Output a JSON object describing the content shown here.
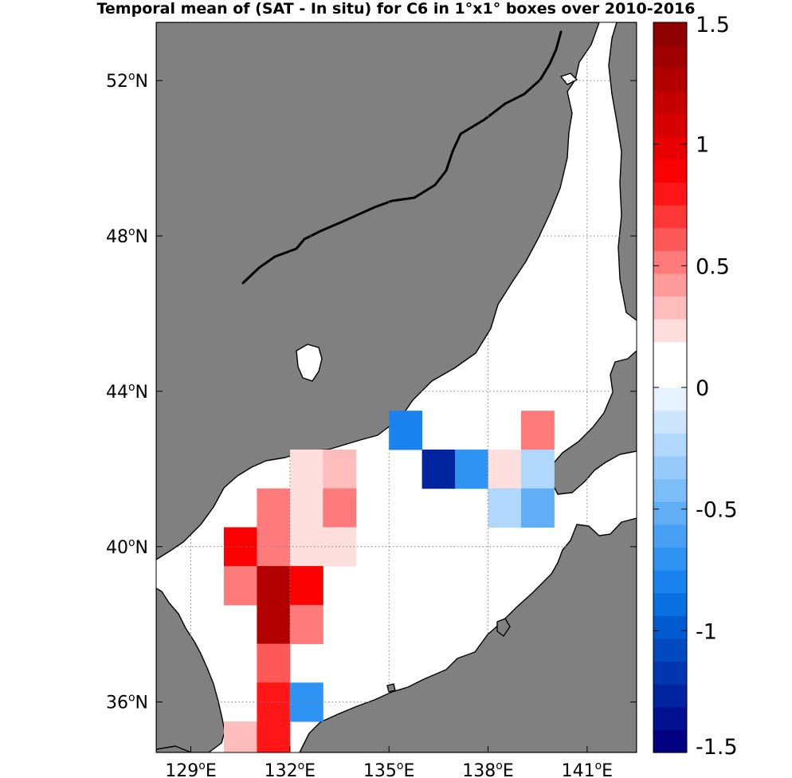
{
  "title": "Temporal mean of (SAT - In situ) for C6 in 1°x1° boxes over 2010-2016",
  "colors": {
    "land": "#808080",
    "sea": "#ffffff",
    "coastline": "#000000",
    "grid": "#808080"
  },
  "map": {
    "lon_range": [
      127.95,
      142.5
    ],
    "lat_range": [
      34.7,
      53.5
    ],
    "lon_ticks": [
      {
        "value": 129,
        "deg": "129",
        "hemi": "E"
      },
      {
        "value": 132,
        "deg": "132",
        "hemi": "E"
      },
      {
        "value": 135,
        "deg": "135",
        "hemi": "E"
      },
      {
        "value": 138,
        "deg": "138",
        "hemi": "E"
      },
      {
        "value": 141,
        "deg": "141",
        "hemi": "E"
      }
    ],
    "lat_ticks": [
      {
        "value": 36,
        "deg": "36",
        "hemi": "N"
      },
      {
        "value": 40,
        "deg": "40",
        "hemi": "N"
      },
      {
        "value": 44,
        "deg": "44",
        "hemi": "N"
      },
      {
        "value": 48,
        "deg": "48",
        "hemi": "N"
      },
      {
        "value": 52,
        "deg": "52",
        "hemi": "N"
      }
    ],
    "degree_symbol": "o"
  },
  "colorbar": {
    "min": -1.5,
    "max": 1.5,
    "ticks": [
      {
        "value": 1.5,
        "label": "1.5"
      },
      {
        "value": 1,
        "label": "1"
      },
      {
        "value": 0.5,
        "label": "0.5"
      },
      {
        "value": 0,
        "label": "0"
      },
      {
        "value": -0.5,
        "label": "-0.5"
      },
      {
        "value": -1,
        "label": "-1"
      },
      {
        "value": -1.5,
        "label": "-1.5"
      }
    ],
    "colors": [
      "#000080",
      "#00128f",
      "#00249f",
      "#0037b0",
      "#0049c0",
      "#005bd0",
      "#0a6fe0",
      "#1a82ef",
      "#2e93f2",
      "#47a0f4",
      "#61aef6",
      "#7abdf8",
      "#95cafa",
      "#b0d8fc",
      "#cce5fd",
      "#e6f2fe",
      "#ffffff",
      "#ffffff",
      "#ffdede",
      "#ffbcbc",
      "#ff9b9b",
      "#ff7a7a",
      "#ff5858",
      "#ff3737",
      "#ff1616",
      "#fa0000",
      "#e80000",
      "#d60000",
      "#c40000",
      "#b20000",
      "#a10000",
      "#8f0000"
    ]
  },
  "chart_data": {
    "type": "heatmap",
    "title": "Temporal mean of (SAT - In situ) for C6 in 1°x1° boxes over 2010-2016",
    "cell_size_deg": 1,
    "value_range": [
      -1.5,
      1.5
    ],
    "cells": [
      {
        "lon": 135.5,
        "lat": 43.0,
        "value": -0.8
      },
      {
        "lon": 139.5,
        "lat": 43.0,
        "value": 0.5
      },
      {
        "lon": 132.5,
        "lat": 42.0,
        "value": 0.25
      },
      {
        "lon": 133.5,
        "lat": 42.0,
        "value": 0.35
      },
      {
        "lon": 136.5,
        "lat": 42.0,
        "value": -1.3
      },
      {
        "lon": 137.5,
        "lat": 42.0,
        "value": -0.75
      },
      {
        "lon": 138.5,
        "lat": 42.0,
        "value": 0.25
      },
      {
        "lon": 139.5,
        "lat": 42.0,
        "value": -0.25
      },
      {
        "lon": 131.5,
        "lat": 41.0,
        "value": 0.5
      },
      {
        "lon": 132.5,
        "lat": 41.0,
        "value": 0.25
      },
      {
        "lon": 133.5,
        "lat": 41.0,
        "value": 0.55
      },
      {
        "lon": 138.5,
        "lat": 41.0,
        "value": -0.25
      },
      {
        "lon": 139.5,
        "lat": 41.0,
        "value": -0.55
      },
      {
        "lon": 130.5,
        "lat": 40.0,
        "value": 0.85
      },
      {
        "lon": 131.5,
        "lat": 40.0,
        "value": 0.5
      },
      {
        "lon": 132.5,
        "lat": 40.0,
        "value": 0.25
      },
      {
        "lon": 133.5,
        "lat": 40.0,
        "value": 0.25
      },
      {
        "lon": 130.5,
        "lat": 39.0,
        "value": 0.5
      },
      {
        "lon": 131.5,
        "lat": 39.0,
        "value": 1.3
      },
      {
        "lon": 132.5,
        "lat": 39.0,
        "value": 0.85
      },
      {
        "lon": 131.5,
        "lat": 38.0,
        "value": 1.3
      },
      {
        "lon": 132.5,
        "lat": 38.0,
        "value": 0.55
      },
      {
        "lon": 131.5,
        "lat": 37.0,
        "value": 0.6
      },
      {
        "lon": 131.5,
        "lat": 36.0,
        "value": 0.8
      },
      {
        "lon": 132.5,
        "lat": 36.0,
        "value": -0.7
      },
      {
        "lon": 130.5,
        "lat": 35.0,
        "value": 0.35
      },
      {
        "lon": 131.5,
        "lat": 35.0,
        "value": 0.8
      }
    ]
  }
}
